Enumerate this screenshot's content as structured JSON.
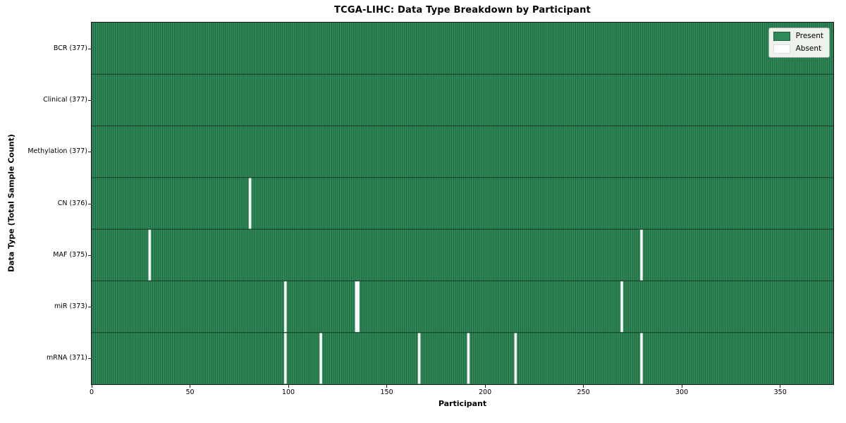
{
  "colors": {
    "present": "#2e8b57",
    "absent": "#ffffff",
    "cell_edge": "#1f5c3c",
    "row_divider": "#1b3526",
    "plot_border": "#1a1a1a",
    "legend_bg": "#edf2ed",
    "legend_border": "#a8a8a8",
    "absent_edge": "#d9d9d9",
    "text": "#000000"
  },
  "chart_data": {
    "type": "heatmap",
    "title": "TCGA-LIHC: Data Type Breakdown by Participant",
    "xlabel": "Participant",
    "ylabel": "Data Type (Total Sample Count)",
    "legend_position": "upper right",
    "legend_entries": [
      "Present",
      "Absent"
    ],
    "n_participants": 377,
    "x_ticks": [
      0,
      50,
      100,
      150,
      200,
      250,
      300,
      350
    ],
    "x_range": [
      0,
      377
    ],
    "grid": false,
    "rows": [
      {
        "label": "BCR",
        "total": 377,
        "display": "BCR (377)",
        "absent_participants": []
      },
      {
        "label": "Clinical",
        "total": 377,
        "display": "Clinical (377)",
        "absent_participants": []
      },
      {
        "label": "Methylation",
        "total": 377,
        "display": "Methylation (377)",
        "absent_participants": []
      },
      {
        "label": "CN",
        "total": 376,
        "display": "CN (376)",
        "absent_participants": [
          80
        ]
      },
      {
        "label": "MAF",
        "total": 375,
        "display": "MAF (375)",
        "absent_participants": [
          29,
          279
        ]
      },
      {
        "label": "miR",
        "total": 373,
        "display": "miR (373)",
        "absent_participants": [
          98,
          134,
          135,
          269
        ]
      },
      {
        "label": "mRNA",
        "total": 371,
        "display": "mRNA (371)",
        "absent_participants": [
          98,
          116,
          166,
          191,
          215,
          279
        ]
      }
    ]
  }
}
